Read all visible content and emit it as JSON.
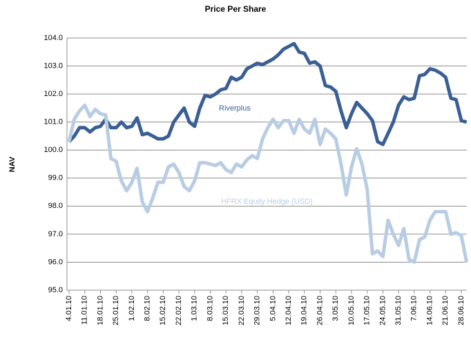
{
  "chart_data": {
    "type": "line",
    "title": "Price Per Share",
    "y_label": "NAV",
    "categories": [
      "4.01.10",
      null,
      null,
      "11.01.10",
      null,
      null,
      "18.01.10",
      null,
      null,
      "25.01.10",
      null,
      null,
      "1.02.10",
      null,
      null,
      "8.02.10",
      null,
      null,
      "15.02.10",
      null,
      null,
      "22.02.10",
      null,
      null,
      "1.03.10",
      null,
      null,
      "8.03.10",
      null,
      null,
      "15.03.10",
      null,
      null,
      "22.03.10",
      null,
      null,
      "29.03.10",
      null,
      null,
      "5.04.10",
      null,
      null,
      "12.04.10",
      null,
      null,
      "19.04.10",
      null,
      null,
      "26.04.10",
      null,
      null,
      "3.05.10",
      null,
      null,
      "10.05.10",
      null,
      null,
      "17.05.10",
      null,
      null,
      "24.05.10",
      null,
      null,
      "31.05.10",
      null,
      null,
      "7.06.10",
      null,
      null,
      "14.06.10",
      null,
      null,
      "21.06.10",
      null,
      null,
      "28.06.10",
      null
    ],
    "series": [
      {
        "name": "Riverplus",
        "color": "#3a5f95",
        "values": [
          100.3,
          100.5,
          100.8,
          100.8,
          100.65,
          100.8,
          100.85,
          101.1,
          100.8,
          100.8,
          101.0,
          100.8,
          100.85,
          101.15,
          100.55,
          100.6,
          100.5,
          100.4,
          100.4,
          100.5,
          101.0,
          101.25,
          101.5,
          101.0,
          100.85,
          101.5,
          101.95,
          101.9,
          102.0,
          102.15,
          102.2,
          102.6,
          102.5,
          102.6,
          102.9,
          103.0,
          103.1,
          103.05,
          103.15,
          103.25,
          103.4,
          103.6,
          103.7,
          103.8,
          103.5,
          103.45,
          103.1,
          103.15,
          103.0,
          102.3,
          102.25,
          102.1,
          101.4,
          100.8,
          101.3,
          101.7,
          101.5,
          101.3,
          101.05,
          100.3,
          100.2,
          100.6,
          101.0,
          101.6,
          101.9,
          101.8,
          101.85,
          102.65,
          102.7,
          102.9,
          102.85,
          102.75,
          102.6,
          101.85,
          101.8,
          101.05,
          101.0
        ]
      },
      {
        "name": "HFRX Equity Hedge (USD)",
        "color": "#b8cce4",
        "values": [
          100.3,
          101.1,
          101.4,
          101.6,
          101.2,
          101.45,
          101.3,
          101.25,
          99.7,
          99.6,
          98.9,
          98.55,
          98.85,
          99.35,
          98.15,
          97.8,
          98.3,
          98.85,
          98.85,
          99.4,
          99.5,
          99.2,
          98.7,
          98.55,
          98.9,
          99.55,
          99.55,
          99.5,
          99.45,
          99.55,
          99.3,
          99.2,
          99.5,
          99.4,
          99.65,
          99.8,
          99.7,
          100.4,
          100.8,
          101.1,
          100.8,
          101.05,
          101.05,
          100.6,
          101.1,
          100.75,
          100.6,
          101.1,
          100.2,
          100.75,
          100.6,
          100.4,
          99.5,
          98.4,
          99.4,
          100.05,
          99.5,
          98.6,
          96.3,
          96.4,
          96.2,
          97.5,
          97.0,
          96.6,
          97.2,
          96.1,
          96.0,
          96.8,
          96.9,
          97.5,
          97.8,
          97.8,
          97.8,
          97.0,
          97.05,
          96.95,
          96.0
        ]
      }
    ],
    "ylim": [
      95,
      104
    ],
    "yticks": [
      {
        "value": 95,
        "label": "95.0"
      },
      {
        "value": 96,
        "label": "96.0"
      },
      {
        "value": 97,
        "label": "97.0"
      },
      {
        "value": 98,
        "label": "98.0"
      },
      {
        "value": 99,
        "label": "99.0"
      },
      {
        "value": 100,
        "label": "100.0"
      },
      {
        "value": 101,
        "label": "101.0"
      },
      {
        "value": 102,
        "label": "102.0"
      },
      {
        "value": 103,
        "label": "103.0"
      },
      {
        "value": 104,
        "label": "104.0"
      }
    ],
    "grid": true
  }
}
